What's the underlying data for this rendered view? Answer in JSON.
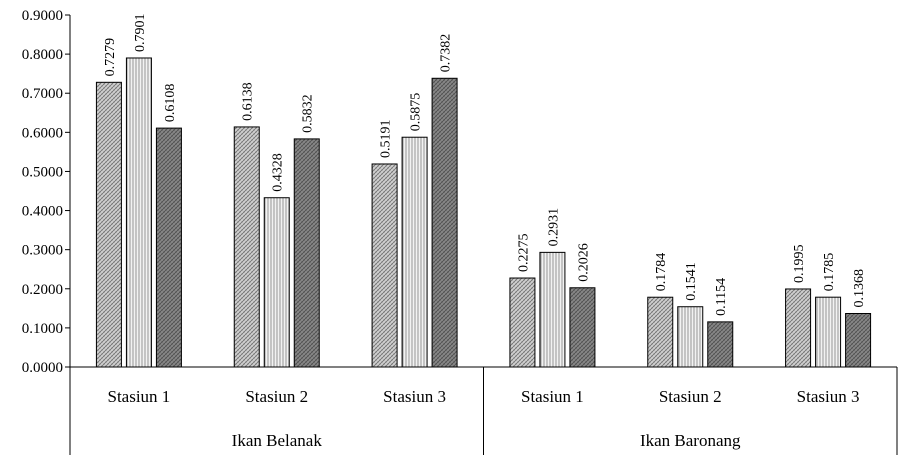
{
  "chart_data": {
    "type": "bar",
    "groups": [
      {
        "label": "Ikan Belanak",
        "categories": [
          "Stasiun 1",
          "Stasiun 2",
          "Stasiun 3"
        ]
      },
      {
        "label": "Ikan Baronang",
        "categories": [
          "Stasiun 1",
          "Stasiun 2",
          "Stasiun 3"
        ]
      }
    ],
    "series": [
      {
        "values": [
          0.7279,
          0.6138,
          0.5191,
          0.2275,
          0.1784,
          0.1995
        ],
        "labels": [
          "0.7279",
          "0.6138",
          "0.5191",
          "0.2275",
          "0.1784",
          "0.1995"
        ]
      },
      {
        "values": [
          0.7901,
          0.4328,
          0.5875,
          0.2931,
          0.1541,
          0.1785
        ],
        "labels": [
          "0.7901",
          "0.4328",
          "0.5875",
          "0.2931",
          "0.1541",
          "0.1785"
        ]
      },
      {
        "values": [
          0.6108,
          0.5832,
          0.7382,
          0.2026,
          0.1154,
          0.1368
        ],
        "labels": [
          "0.6108",
          "0.5832",
          "0.7382",
          "0.2026",
          "0.1154",
          "0.1368"
        ]
      }
    ],
    "yticks": [
      "0.0000",
      "0.1000",
      "0.2000",
      "0.3000",
      "0.4000",
      "0.5000",
      "0.6000",
      "0.7000",
      "0.8000",
      "0.9000"
    ],
    "ylim": [
      0,
      0.9
    ],
    "title": "",
    "xlabel": "",
    "ylabel": "",
    "legend": "none",
    "grid": false,
    "colors": [
      "#c8c8c8",
      "#e2e2e2",
      "#8c8c8c"
    ]
  }
}
